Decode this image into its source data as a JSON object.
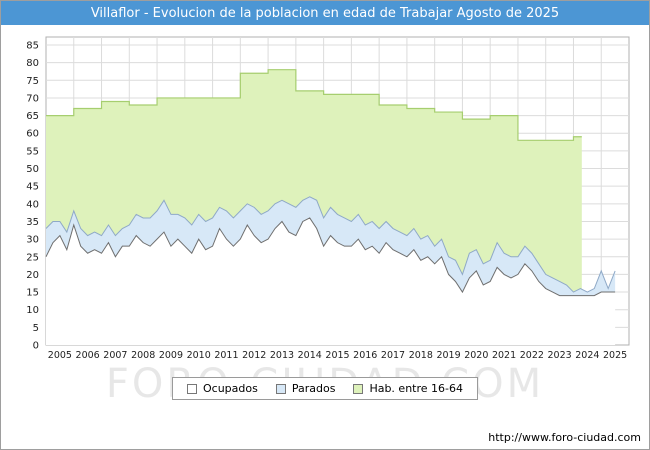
{
  "title": "Villaflor - Evolucion de la poblacion en edad de Trabajar Agosto de 2025",
  "watermark": "FORO-CIUDAD.COM",
  "footer_url": "http://www.foro-ciudad.com",
  "colors": {
    "title_bar": "#4c96d4",
    "grid": "#dcdcdc",
    "plot_border": "#b0b0b0"
  },
  "chart_data": {
    "type": "area",
    "title": "Villaflor - Evolucion de la poblacion en edad de Trabajar Agosto de 2025",
    "legend_position": "bottom",
    "grid": true,
    "x_axis": {
      "min": 2005,
      "max": 2026,
      "tick_labels": [
        "2005",
        "2006",
        "2007",
        "2008",
        "2009",
        "2010",
        "2011",
        "2012",
        "2013",
        "2014",
        "2015",
        "2016",
        "2017",
        "2018",
        "2019",
        "2020",
        "2021",
        "2022",
        "2023",
        "2024",
        "2025"
      ]
    },
    "y_axis": {
      "min": 0,
      "max": 85,
      "step": 5
    },
    "sample_x_start": 2005,
    "sample_x_step": 0.25,
    "series": [
      {
        "name": "Ocupados",
        "type": "area",
        "fill": "#ffffff",
        "stroke": "#6f6f6f",
        "values": [
          25,
          29,
          31,
          27,
          34,
          28,
          26,
          27,
          26,
          29,
          25,
          28,
          28,
          31,
          29,
          28,
          30,
          32,
          28,
          30,
          28,
          26,
          30,
          27,
          28,
          33,
          30,
          28,
          30,
          34,
          31,
          29,
          30,
          33,
          35,
          32,
          31,
          35,
          36,
          33,
          28,
          31,
          29,
          28,
          28,
          30,
          27,
          28,
          26,
          29,
          27,
          26,
          25,
          27,
          24,
          25,
          23,
          25,
          20,
          18,
          15,
          19,
          21,
          17,
          18,
          22,
          20,
          19,
          20,
          23,
          21,
          18,
          16,
          15,
          14,
          14,
          14,
          14,
          14,
          14,
          15,
          15,
          15
        ]
      },
      {
        "name": "Parados",
        "type": "area-stacked",
        "fill": "#d7e8f7",
        "stroke": "#8fa9c7",
        "values": [
          8,
          6,
          4,
          5,
          4,
          5,
          5,
          5,
          5,
          5,
          6,
          5,
          6,
          6,
          7,
          8,
          8,
          9,
          9,
          7,
          8,
          8,
          7,
          8,
          8,
          6,
          8,
          8,
          8,
          6,
          8,
          8,
          8,
          7,
          6,
          8,
          8,
          6,
          6,
          8,
          8,
          8,
          8,
          8,
          7,
          7,
          7,
          7,
          7,
          6,
          6,
          6,
          6,
          6,
          6,
          6,
          5,
          5,
          5,
          6,
          5,
          7,
          6,
          6,
          6,
          7,
          6,
          6,
          5,
          5,
          5,
          5,
          4,
          4,
          4,
          3,
          1,
          2,
          1,
          2,
          6,
          1,
          6
        ]
      },
      {
        "name": "Hab. entre 16-64",
        "type": "step-area",
        "fill": "#def2bb",
        "stroke": "#a6ce6f",
        "step_x_start": 2005,
        "step_x_interval": 1,
        "end_x": 2024.3,
        "values": [
          65,
          67,
          69,
          68,
          70,
          70,
          70,
          77,
          78,
          72,
          71,
          71,
          68,
          67,
          66,
          64,
          65,
          58,
          58,
          59
        ]
      }
    ]
  }
}
